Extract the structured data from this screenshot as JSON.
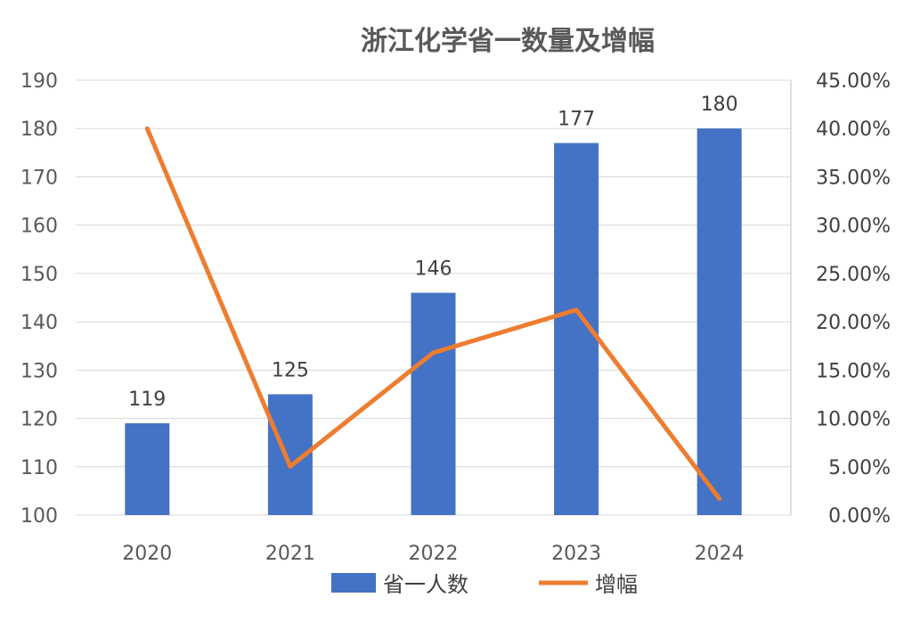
{
  "chart_data": {
    "type": "bar",
    "title": "浙江化学省一数量及增幅",
    "categories": [
      "2020",
      "2021",
      "2022",
      "2023",
      "2024"
    ],
    "series": [
      {
        "name": "省一人数",
        "type": "bar",
        "axis": "left",
        "color": "#4472C4",
        "values": [
          119,
          125,
          146,
          177,
          180
        ],
        "labels": [
          "119",
          "125",
          "146",
          "177",
          "180"
        ]
      },
      {
        "name": "增幅",
        "type": "line",
        "axis": "right",
        "color": "#ED7D31",
        "values": [
          0.4,
          0.0504,
          0.168,
          0.2123,
          0.0169
        ]
      }
    ],
    "left_axis": {
      "min": 100,
      "max": 190,
      "step": 10,
      "ticks": [
        "100",
        "110",
        "120",
        "130",
        "140",
        "150",
        "160",
        "170",
        "180",
        "190"
      ]
    },
    "right_axis": {
      "min": 0,
      "max": 0.45,
      "step": 0.05,
      "ticks": [
        "0.00%",
        "5.00%",
        "10.00%",
        "15.00%",
        "20.00%",
        "25.00%",
        "30.00%",
        "35.00%",
        "40.00%",
        "45.00%"
      ]
    },
    "grid": true,
    "legend_position": "bottom"
  }
}
